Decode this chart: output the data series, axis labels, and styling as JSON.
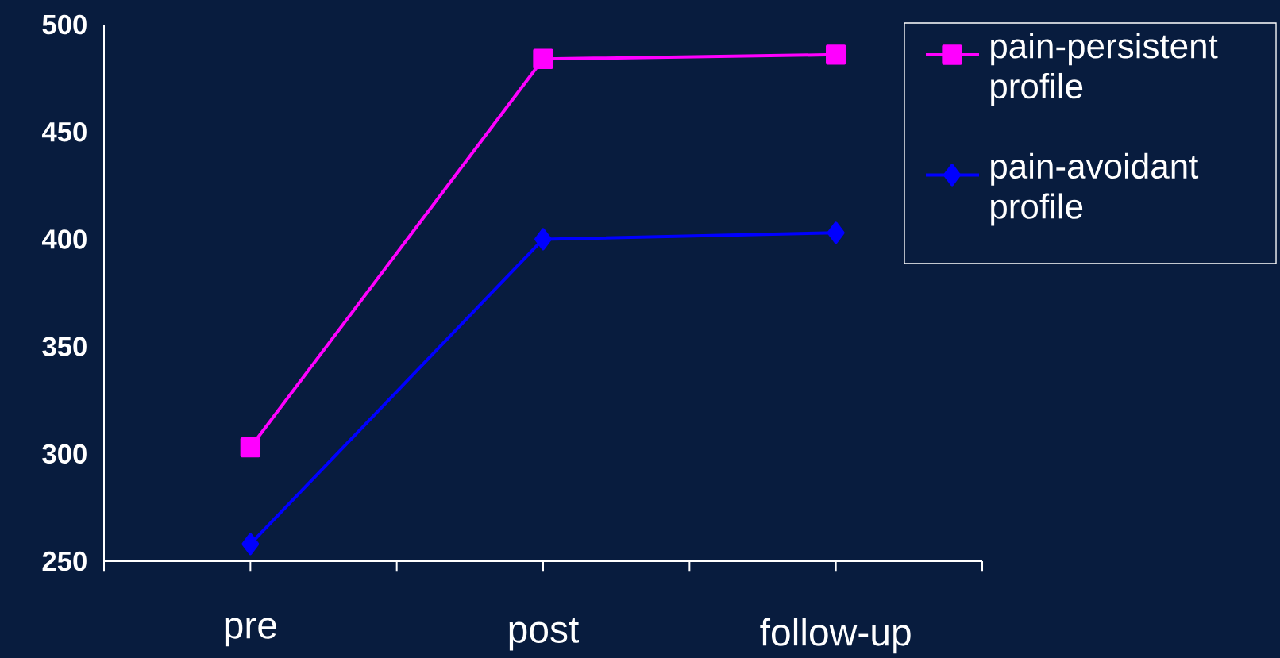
{
  "chart_data": {
    "type": "line",
    "categories": [
      "pre",
      "post",
      "follow-up"
    ],
    "series": [
      {
        "name": "pain-persistent profile",
        "color": "#ff00ff",
        "marker": "square",
        "values": [
          303,
          484,
          486
        ]
      },
      {
        "name": "pain-avoidant profile",
        "color": "#0000ff",
        "marker": "diamond",
        "values": [
          258,
          400,
          403
        ]
      }
    ],
    "ylim": [
      250,
      500
    ],
    "yticks": [
      250,
      300,
      350,
      400,
      450,
      500
    ],
    "grid": false,
    "legend": "top right",
    "line_style": "solid"
  }
}
